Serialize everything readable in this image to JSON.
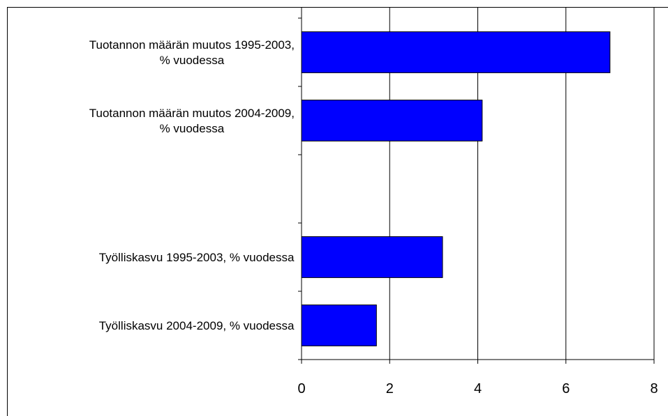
{
  "chart_data": {
    "type": "bar",
    "orientation": "horizontal",
    "categories": [
      "Tuotannon määrän muutos 1995-2003,\n% vuodessa",
      "Tuotannon määrän muutos 2004-2009,\n% vuodessa",
      null,
      "Työlliskasvu 1995-2003, % vuodessa",
      "Työlliskasvu 2004-2009, % vuodessa"
    ],
    "values": [
      7,
      4.1,
      null,
      3.2,
      1.7
    ],
    "color": "#0000ff",
    "xlim": [
      0,
      8
    ],
    "xticks": [
      0,
      2,
      4,
      6,
      8
    ],
    "grid": true
  }
}
